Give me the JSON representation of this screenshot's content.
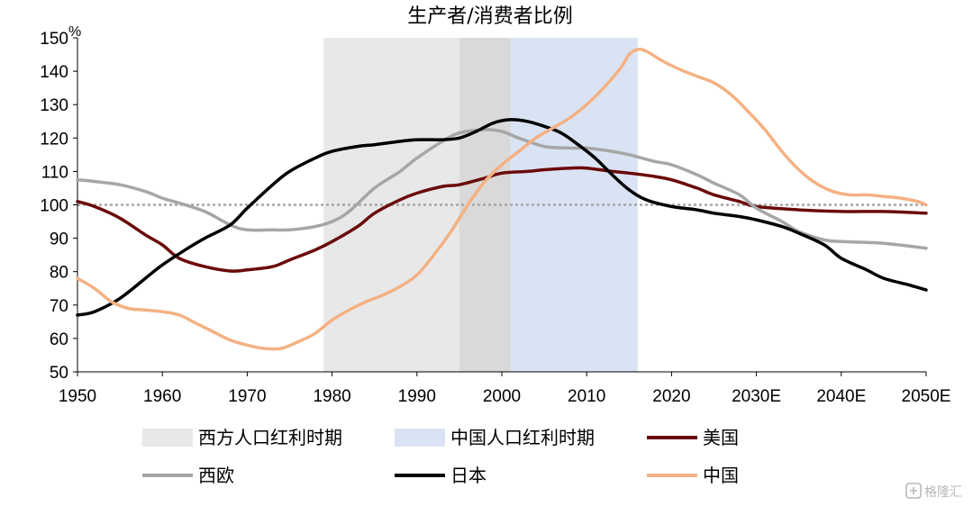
{
  "chart_data": {
    "type": "line",
    "title": "生产者/消费者比例",
    "ylabel": "%",
    "xlabel": "",
    "xlim": [
      1950,
      2050
    ],
    "ylim": [
      50,
      150
    ],
    "yticks": [
      50,
      60,
      70,
      80,
      90,
      100,
      110,
      120,
      130,
      140,
      150
    ],
    "xticks": [
      {
        "value": 1950,
        "label": "1950"
      },
      {
        "value": 1960,
        "label": "1960"
      },
      {
        "value": 1970,
        "label": "1970"
      },
      {
        "value": 1980,
        "label": "1980"
      },
      {
        "value": 1990,
        "label": "1990"
      },
      {
        "value": 2000,
        "label": "2000"
      },
      {
        "value": 2010,
        "label": "2010"
      },
      {
        "value": 2020,
        "label": "2020"
      },
      {
        "value": 2030,
        "label": "2030E"
      },
      {
        "value": 2040,
        "label": "2040E"
      },
      {
        "value": 2050,
        "label": "2050E"
      }
    ],
    "reference_line": {
      "y": 100,
      "style": "dotted",
      "color": "#a6a6a6"
    },
    "shaded_periods": [
      {
        "name": "西方人口红利时期",
        "from": 1979,
        "to": 2001,
        "color": "#e8e8e8"
      },
      {
        "name": "中国人口红利时期",
        "from": 1995,
        "to": 2016,
        "color": "#dae3f3"
      }
    ],
    "overlap_color": "#d9d9d9",
    "series": [
      {
        "name": "美国",
        "color": "#6b0a0a",
        "points": [
          [
            1950,
            101
          ],
          [
            1952,
            99.5
          ],
          [
            1955,
            96
          ],
          [
            1958,
            91
          ],
          [
            1960,
            88
          ],
          [
            1962,
            84
          ],
          [
            1965,
            81.5
          ],
          [
            1968,
            80.2
          ],
          [
            1970,
            80.5
          ],
          [
            1973,
            81.5
          ],
          [
            1975,
            83.5
          ],
          [
            1978,
            86.5
          ],
          [
            1980,
            89
          ],
          [
            1983,
            93.5
          ],
          [
            1985,
            97.5
          ],
          [
            1988,
            101.5
          ],
          [
            1990,
            103.5
          ],
          [
            1993,
            105.5
          ],
          [
            1995,
            106
          ],
          [
            1998,
            108
          ],
          [
            2000,
            109.5
          ],
          [
            2003,
            110
          ],
          [
            2005,
            110.5
          ],
          [
            2008,
            111
          ],
          [
            2010,
            111
          ],
          [
            2013,
            110
          ],
          [
            2015,
            109.5
          ],
          [
            2018,
            108.5
          ],
          [
            2020,
            107.5
          ],
          [
            2023,
            105
          ],
          [
            2025,
            103
          ],
          [
            2028,
            101
          ],
          [
            2030,
            99.5
          ],
          [
            2035,
            98.5
          ],
          [
            2040,
            98
          ],
          [
            2045,
            98
          ],
          [
            2050,
            97.5
          ]
        ]
      },
      {
        "name": "西欧",
        "color": "#a6a6a6",
        "points": [
          [
            1950,
            107.5
          ],
          [
            1952,
            107
          ],
          [
            1955,
            106
          ],
          [
            1958,
            104
          ],
          [
            1960,
            102
          ],
          [
            1962,
            100.5
          ],
          [
            1965,
            98
          ],
          [
            1968,
            94
          ],
          [
            1970,
            92.5
          ],
          [
            1973,
            92.5
          ],
          [
            1975,
            92.5
          ],
          [
            1978,
            93.5
          ],
          [
            1980,
            95
          ],
          [
            1982,
            98
          ],
          [
            1985,
            105
          ],
          [
            1988,
            110
          ],
          [
            1990,
            114
          ],
          [
            1993,
            119
          ],
          [
            1995,
            121.5
          ],
          [
            1998,
            122.5
          ],
          [
            2000,
            122
          ],
          [
            2002,
            120
          ],
          [
            2005,
            117.5
          ],
          [
            2008,
            117
          ],
          [
            2010,
            117
          ],
          [
            2013,
            116
          ],
          [
            2015,
            115
          ],
          [
            2018,
            113
          ],
          [
            2020,
            112
          ],
          [
            2023,
            109
          ],
          [
            2025,
            106.5
          ],
          [
            2028,
            103
          ],
          [
            2030,
            99
          ],
          [
            2033,
            95
          ],
          [
            2035,
            92
          ],
          [
            2038,
            89.5
          ],
          [
            2040,
            89
          ],
          [
            2045,
            88.5
          ],
          [
            2050,
            87
          ]
        ]
      },
      {
        "name": "日本",
        "color": "#000000",
        "points": [
          [
            1950,
            67
          ],
          [
            1952,
            68
          ],
          [
            1955,
            72
          ],
          [
            1958,
            78
          ],
          [
            1960,
            82
          ],
          [
            1963,
            87
          ],
          [
            1965,
            90
          ],
          [
            1968,
            94
          ],
          [
            1970,
            99
          ],
          [
            1973,
            106
          ],
          [
            1975,
            110
          ],
          [
            1978,
            114
          ],
          [
            1980,
            116
          ],
          [
            1983,
            117.5
          ],
          [
            1985,
            118
          ],
          [
            1988,
            119
          ],
          [
            1990,
            119.5
          ],
          [
            1993,
            119.5
          ],
          [
            1995,
            120
          ],
          [
            1997,
            122
          ],
          [
            1999,
            124.5
          ],
          [
            2001,
            125.5
          ],
          [
            2003,
            125
          ],
          [
            2005,
            123.5
          ],
          [
            2007,
            121.5
          ],
          [
            2009,
            118
          ],
          [
            2011,
            114
          ],
          [
            2013,
            109
          ],
          [
            2015,
            104.5
          ],
          [
            2017,
            101.5
          ],
          [
            2020,
            99.5
          ],
          [
            2023,
            98.5
          ],
          [
            2025,
            97.5
          ],
          [
            2028,
            96.5
          ],
          [
            2030,
            95.5
          ],
          [
            2033,
            93.5
          ],
          [
            2035,
            91.5
          ],
          [
            2038,
            88
          ],
          [
            2040,
            84
          ],
          [
            2043,
            80.5
          ],
          [
            2045,
            78
          ],
          [
            2048,
            76
          ],
          [
            2050,
            74.5
          ]
        ]
      },
      {
        "name": "中国",
        "color": "#f4b183",
        "points": [
          [
            1950,
            78
          ],
          [
            1952,
            75
          ],
          [
            1954,
            71
          ],
          [
            1956,
            69
          ],
          [
            1958,
            68.5
          ],
          [
            1960,
            68
          ],
          [
            1962,
            67
          ],
          [
            1964,
            64.5
          ],
          [
            1966,
            62
          ],
          [
            1968,
            59.5
          ],
          [
            1970,
            58
          ],
          [
            1972,
            57
          ],
          [
            1974,
            57
          ],
          [
            1976,
            59
          ],
          [
            1978,
            61.5
          ],
          [
            1980,
            65.5
          ],
          [
            1982,
            68.5
          ],
          [
            1984,
            71
          ],
          [
            1986,
            73
          ],
          [
            1988,
            75.5
          ],
          [
            1990,
            79
          ],
          [
            1992,
            85
          ],
          [
            1994,
            92
          ],
          [
            1996,
            100
          ],
          [
            1998,
            107
          ],
          [
            2000,
            112
          ],
          [
            2002,
            116
          ],
          [
            2004,
            120
          ],
          [
            2006,
            123
          ],
          [
            2008,
            126
          ],
          [
            2010,
            130
          ],
          [
            2012,
            135
          ],
          [
            2014,
            141
          ],
          [
            2015,
            145
          ],
          [
            2016,
            146.5
          ],
          [
            2017,
            146
          ],
          [
            2019,
            143
          ],
          [
            2021,
            140.5
          ],
          [
            2023,
            138.5
          ],
          [
            2025,
            136.5
          ],
          [
            2027,
            133
          ],
          [
            2029,
            128
          ],
          [
            2031,
            122.5
          ],
          [
            2033,
            116
          ],
          [
            2035,
            110.5
          ],
          [
            2037,
            106.5
          ],
          [
            2039,
            104
          ],
          [
            2041,
            103
          ],
          [
            2043,
            103
          ],
          [
            2045,
            102.5
          ],
          [
            2047,
            102
          ],
          [
            2049,
            101
          ],
          [
            2050,
            100
          ]
        ]
      }
    ],
    "legend": {
      "placement": "bottom",
      "items": [
        {
          "label": "西方人口红利时期",
          "kind": "area",
          "color": "#e8e8e8"
        },
        {
          "label": "中国人口红利时期",
          "kind": "area",
          "color": "#dae3f3"
        },
        {
          "label": "美国",
          "kind": "line",
          "color": "#6b0a0a"
        },
        {
          "label": "西欧",
          "kind": "line",
          "color": "#a6a6a6"
        },
        {
          "label": "日本",
          "kind": "line",
          "color": "#000000"
        },
        {
          "label": "中国",
          "kind": "line",
          "color": "#f4b183"
        }
      ]
    }
  },
  "watermark": {
    "text": "格隆汇",
    "icon": "gelonghui-logo-icon"
  }
}
